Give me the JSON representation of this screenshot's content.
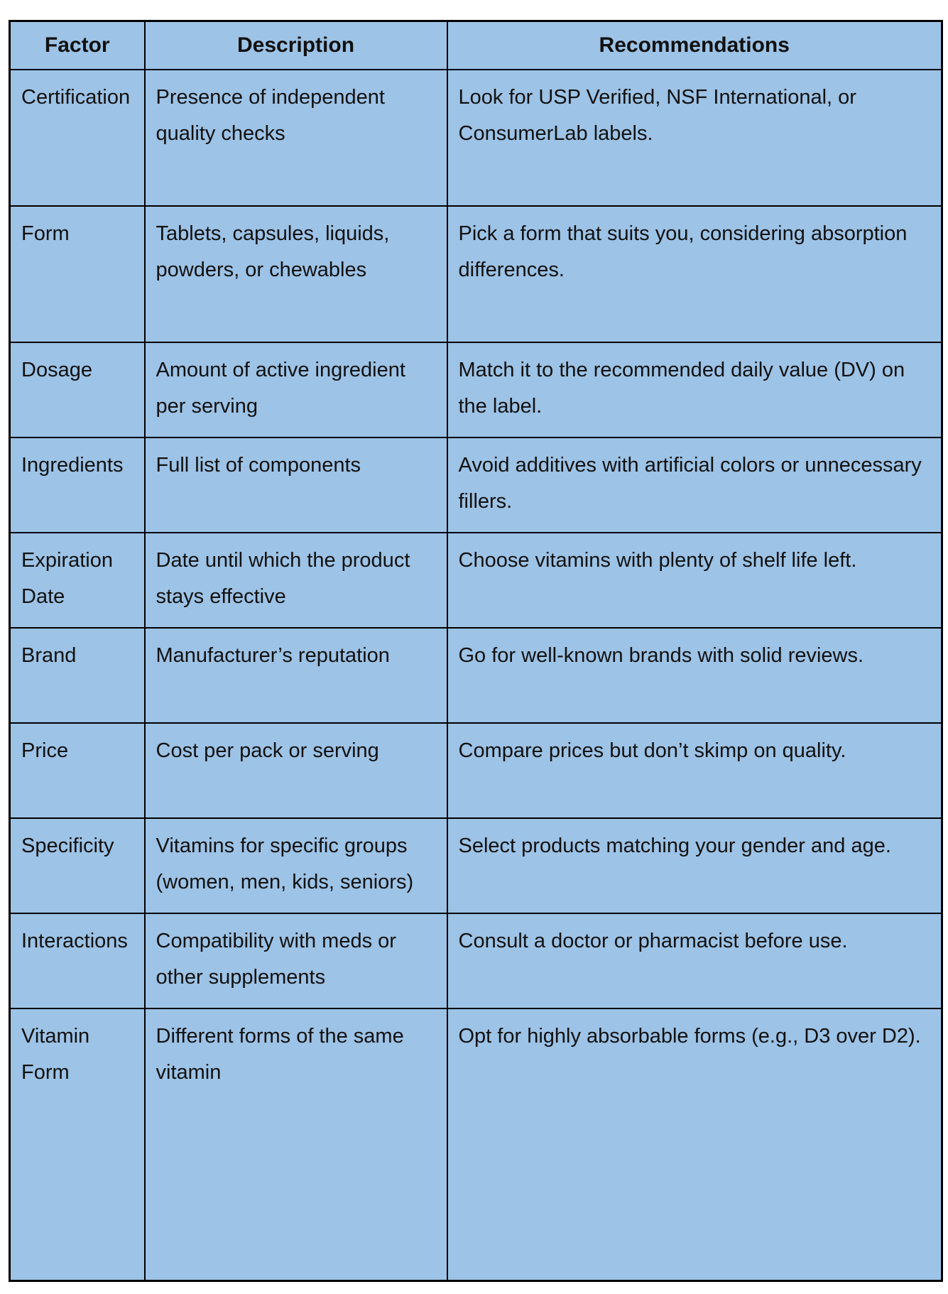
{
  "table": {
    "headers": [
      "Factor",
      "Description",
      "Recommendations"
    ],
    "rows": [
      {
        "factor": "Certification",
        "description": "Presence of independent quality checks",
        "recommendation": "Look for USP Verified, NSF International, or ConsumerLab labels."
      },
      {
        "factor": "Form",
        "description": "Tablets, capsules, liquids, powders, or chewables",
        "recommendation": "Pick a form that suits you, considering absorption differences."
      },
      {
        "factor": "Dosage",
        "description": "Amount of active ingredient per serving",
        "recommendation": "Match it to the recommended daily value (DV) on the label."
      },
      {
        "factor": "Ingredients",
        "description": "Full list of components",
        "recommendation": "Avoid additives with artificial colors or unnecessary fillers."
      },
      {
        "factor": "Expiration Date",
        "description": "Date until which the product stays effective",
        "recommendation": "Choose vitamins with plenty of shelf life left."
      },
      {
        "factor": "Brand",
        "description": "Manufacturer’s reputation",
        "recommendation": "Go for well-known brands with solid reviews."
      },
      {
        "factor": "Price",
        "description": "Cost per pack or serving",
        "recommendation": "Compare prices but don’t skimp on quality."
      },
      {
        "factor": "Specificity",
        "description": "Vitamins for specific groups (women, men, kids, seniors)",
        "recommendation": "Select products matching your gender and age."
      },
      {
        "factor": "Interactions",
        "description": "Compatibility with meds or other supplements",
        "recommendation": "Consult a doctor or pharmacist before use."
      },
      {
        "factor": "Vitamin Form",
        "description": "Different forms of the same vitamin",
        "recommendation": "Opt for highly absorbable forms (e.g., D3 over D2)."
      }
    ],
    "colors": {
      "cell_background": "#9DC3E6",
      "border": "#000000",
      "text": "#111111"
    }
  }
}
